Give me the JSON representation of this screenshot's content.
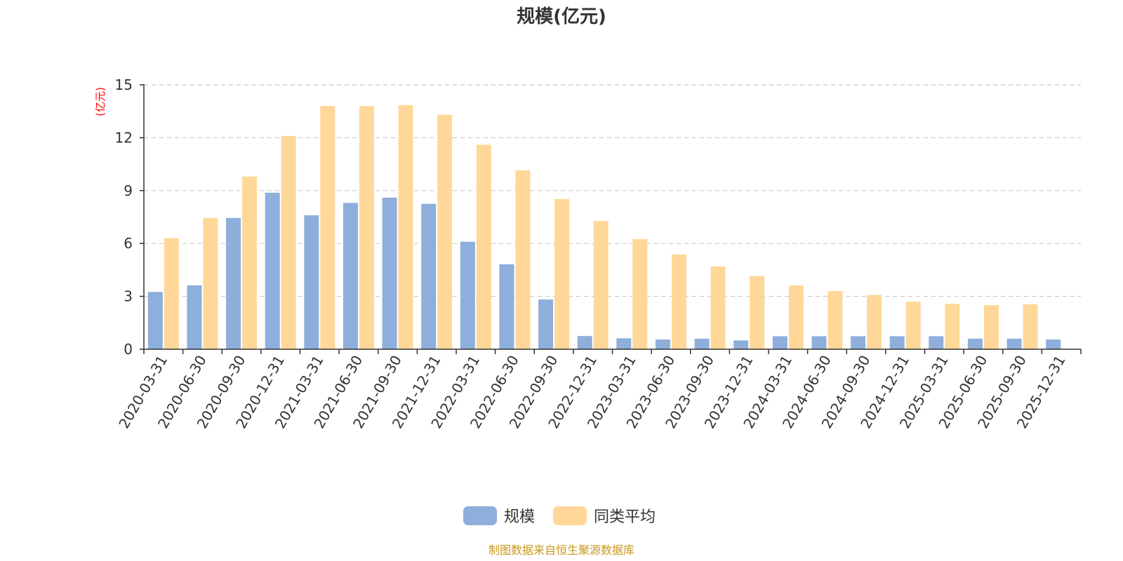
{
  "chart_data": {
    "type": "bar",
    "title": "规模(亿元)",
    "ylabel": "(亿元)",
    "xlabel": "",
    "ylim": [
      0,
      15
    ],
    "yticks": [
      0,
      3,
      6,
      9,
      12,
      15
    ],
    "grid": true,
    "legend_position": "bottom-center",
    "categories": [
      "2020-03-31",
      "2020-06-30",
      "2020-09-30",
      "2020-12-31",
      "2021-03-31",
      "2021-06-30",
      "2021-09-30",
      "2021-12-31",
      "2022-03-31",
      "2022-06-30",
      "2022-09-30",
      "2022-12-31",
      "2023-03-31",
      "2023-06-30",
      "2023-09-30",
      "2023-12-31",
      "2024-03-31",
      "2024-06-30",
      "2024-09-30",
      "2024-12-31",
      "2025-03-31",
      "2025-06-30",
      "2025-09-30",
      "2025-12-31"
    ],
    "series": [
      {
        "name": "规模",
        "color": "#8eaedb",
        "values": [
          3.25,
          3.62,
          7.45,
          8.88,
          7.6,
          8.3,
          8.6,
          8.25,
          6.1,
          4.82,
          2.82,
          0.75,
          0.62,
          0.55,
          0.6,
          0.5,
          0.74,
          0.74,
          0.74,
          0.74,
          0.74,
          0.6,
          0.6,
          0.55
        ]
      },
      {
        "name": "同类平均",
        "color": "#ffd899",
        "values": [
          6.3,
          7.45,
          9.8,
          12.1,
          13.8,
          13.8,
          13.85,
          13.3,
          11.6,
          10.15,
          8.52,
          7.28,
          6.25,
          5.38,
          4.7,
          4.15,
          3.62,
          3.3,
          3.08,
          2.7,
          2.58,
          2.5,
          2.55,
          null
        ]
      }
    ]
  },
  "footer": {
    "source": "制图数据来自恒生聚源数据库"
  }
}
